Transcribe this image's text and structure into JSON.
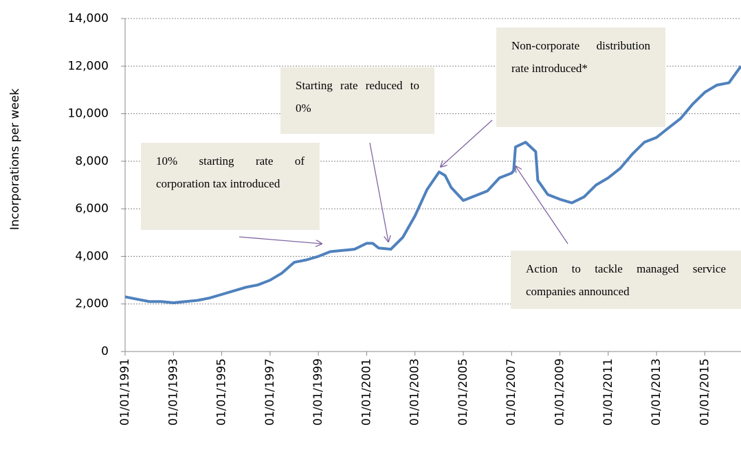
{
  "chart_data": {
    "type": "line",
    "y_label": "Incorporations per week",
    "x": [
      "01/01/1991",
      "01/07/1991",
      "01/01/1992",
      "01/07/1992",
      "01/01/1993",
      "01/07/1993",
      "01/01/1994",
      "01/07/1994",
      "01/01/1995",
      "01/07/1995",
      "01/01/1996",
      "01/07/1996",
      "01/01/1997",
      "01/07/1997",
      "01/01/1998",
      "01/07/1998",
      "01/01/1999",
      "01/07/1999",
      "01/01/2000",
      "01/07/2000",
      "01/01/2001",
      "01/04/2001",
      "01/07/2001",
      "01/01/2002",
      "01/07/2002",
      "01/01/2003",
      "01/07/2003",
      "01/01/2004",
      "01/04/2004",
      "01/07/2004",
      "01/01/2005",
      "01/07/2005",
      "01/01/2006",
      "01/07/2006",
      "01/01/2007",
      "01/02/2007",
      "01/03/2007",
      "01/08/2007",
      "01/01/2008",
      "01/02/2008",
      "01/07/2008",
      "01/01/2009",
      "01/07/2009",
      "01/01/2010",
      "01/07/2010",
      "01/01/2011",
      "01/07/2011",
      "01/01/2012",
      "01/07/2012",
      "01/01/2013",
      "01/07/2013",
      "01/01/2014",
      "01/07/2014",
      "01/01/2015",
      "01/07/2015",
      "01/01/2016",
      "01/07/2016"
    ],
    "series": [
      {
        "name": "Incorporations per week",
        "color": "#4f81bd",
        "values": [
          2300,
          2200,
          2100,
          2100,
          2050,
          2100,
          2150,
          2250,
          2400,
          2550,
          2700,
          2800,
          3000,
          3300,
          3750,
          3850,
          4000,
          4200,
          4250,
          4300,
          4550,
          4550,
          4350,
          4300,
          4800,
          5700,
          6800,
          7550,
          7400,
          6900,
          6350,
          6550,
          6750,
          7300,
          7500,
          7600,
          8600,
          8800,
          8400,
          7200,
          6600,
          6400,
          6250,
          6500,
          7000,
          7300,
          7700,
          8300,
          8800,
          9000,
          9400,
          9800,
          10400,
          10900,
          11200,
          11300,
          12000
        ]
      }
    ],
    "xlim": [
      "01/01/1991",
      "01/07/2016"
    ],
    "xticks": [
      "01/01/1991",
      "01/01/1993",
      "01/01/1995",
      "01/01/1997",
      "01/01/1999",
      "01/01/2001",
      "01/01/2003",
      "01/01/2005",
      "01/01/2007",
      "01/01/2009",
      "01/01/2011",
      "01/01/2013",
      "01/01/2015"
    ],
    "ylim": [
      0,
      14000
    ],
    "yticks": [
      0,
      {
        "value": 2000,
        "label": "2,000"
      },
      {
        "value": 4000,
        "label": "4,000"
      },
      {
        "value": 6000,
        "label": "6,000"
      },
      {
        "value": 8000,
        "label": "8,000"
      },
      {
        "value": 10000,
        "label": "10,000"
      },
      {
        "value": 12000,
        "label": "12,000"
      },
      {
        "value": 14000,
        "label": "14,000"
      }
    ],
    "grid": true,
    "annotations": [
      {
        "text": "10% starting rate of corporation tax introduced"
      },
      {
        "text": "Starting rate reduced to 0%"
      },
      {
        "text": "Non-corporate distribution rate introduced*"
      },
      {
        "text": "Action to tackle managed service companies announced"
      }
    ]
  }
}
